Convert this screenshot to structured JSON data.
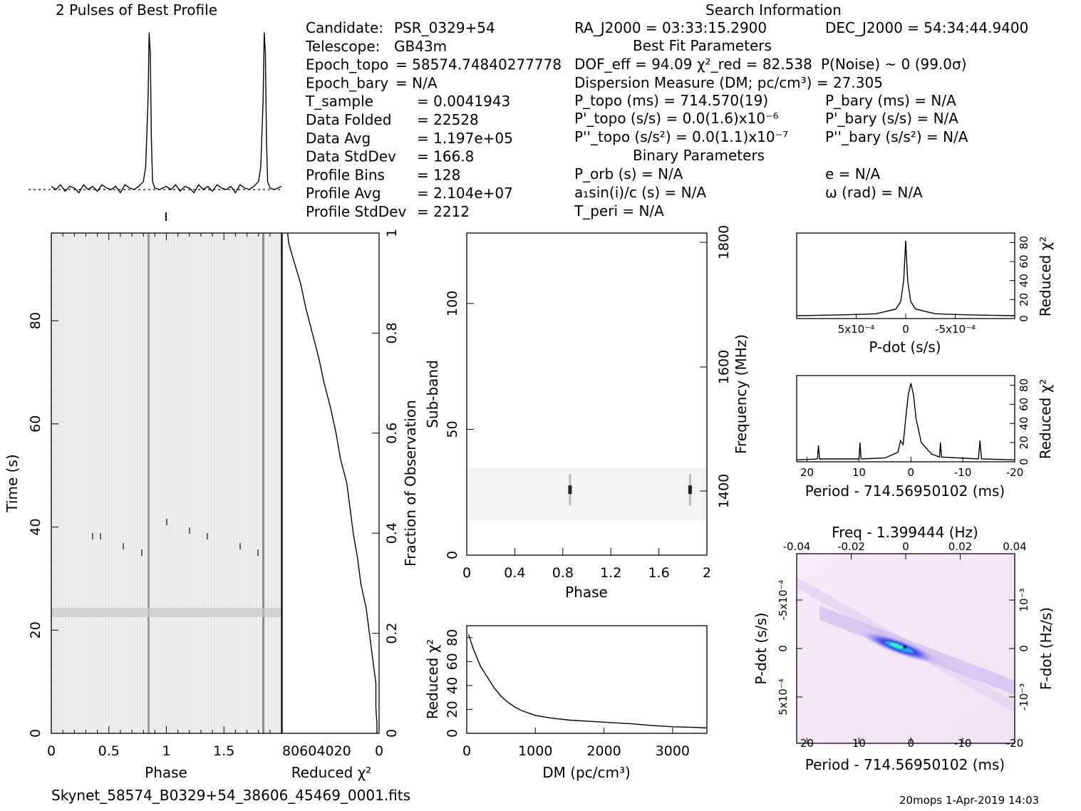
{
  "header": {
    "profile_title": "2 Pulses of Best Profile",
    "search_title": "Search Information",
    "best_fit_title": "Best Fit Parameters",
    "binary_title": "Binary Parameters"
  },
  "info_left": [
    {
      "key": "Candidate:",
      "value": "PSR_0329+54"
    },
    {
      "key": "Telescope:",
      "value": "GB43m"
    },
    {
      "key": "Epoch_topo",
      "value": "= 58574.74840277778"
    },
    {
      "key": "Epoch_bary",
      "value": "= N/A"
    },
    {
      "key": "T_sample",
      "value": "= 0.0041943"
    },
    {
      "key": "Data Folded",
      "value": "= 22528"
    },
    {
      "key": "Data Avg",
      "value": "= 1.197e+05"
    },
    {
      "key": "Data StdDev",
      "value": "= 166.8"
    },
    {
      "key": "Profile Bins",
      "value": "= 128"
    },
    {
      "key": "Profile Avg",
      "value": "= 2.104e+07"
    },
    {
      "key": "Profile StdDev",
      "value": "= 2212"
    }
  ],
  "info_mid": {
    "ra": "RA_J2000 = 03:33:15.2900",
    "dec": "DEC_J2000 = 54:34:44.9400",
    "dof": "DOF_eff = 94.09",
    "chi2": "χ²_red = 82.538",
    "pnoise": "P(Noise) ~ 0   (99.0σ)",
    "dm": "Dispersion Measure (DM; pc/cm³) = 27.305",
    "ptopo": "P_topo (ms) = 714.570(19)",
    "pbary": "P_bary (ms) = N/A",
    "pdtopo": "P'_topo (s/s) = 0.0(1.6)x10⁻⁶",
    "pdbary": "P'_bary (s/s) = N/A",
    "pddtopo": "P''_topo (s/s²) = 0.0(1.1)x10⁻⁷",
    "pddbary": "P''_bary (s/s²) = N/A",
    "porb": "P_orb (s) = N/A",
    "ecc": "e = N/A",
    "a1": "a₁sin(i)/c (s) = N/A",
    "omega": "ω (rad) = N/A",
    "tperi": "T_peri = N/A"
  },
  "footer": {
    "filename": "Skynet_58574_B0329+54_38606_45469_0001.fits",
    "stamp": "20mops   1-Apr-2019 14:03"
  },
  "colors": {
    "pulse": "#444444",
    "accent_blue": "#3030e0",
    "accent_cyan": "#20e0e0",
    "bg_pink": "#f6e6f6"
  },
  "chart_data": [
    {
      "type": "line",
      "name": "profile",
      "x_phase": [
        0,
        0.04,
        0.08,
        0.12,
        0.16,
        0.2,
        0.24,
        0.28,
        0.32,
        0.36,
        0.4,
        0.44,
        0.48,
        0.52,
        0.56,
        0.6,
        0.64,
        0.68,
        0.72,
        0.76,
        0.8,
        0.82,
        0.84,
        0.85,
        0.86,
        0.87,
        0.88,
        0.9,
        0.94,
        1.0,
        1.04,
        1.08,
        1.12,
        1.16,
        1.2,
        1.24,
        1.28,
        1.32,
        1.36,
        1.4,
        1.44,
        1.48,
        1.52,
        1.56,
        1.6,
        1.64,
        1.68,
        1.72,
        1.76,
        1.8,
        1.82,
        1.84,
        1.85,
        1.86,
        1.87,
        1.88,
        1.9,
        1.94,
        2.0
      ],
      "y_rel": [
        0.02,
        0.0,
        0.03,
        -0.01,
        0.02,
        0.01,
        -0.02,
        0.03,
        0.0,
        0.02,
        -0.01,
        0.03,
        0.01,
        0.0,
        0.02,
        -0.02,
        0.03,
        0.01,
        0.0,
        0.02,
        0.05,
        0.14,
        0.55,
        0.98,
        0.85,
        0.3,
        0.05,
        0.01,
        0.0,
        0.02,
        0.0,
        0.03,
        -0.01,
        0.02,
        0.01,
        -0.02,
        0.03,
        0.0,
        0.02,
        -0.01,
        0.03,
        0.01,
        0.0,
        0.02,
        -0.02,
        0.03,
        0.01,
        0.0,
        0.02,
        0.05,
        0.14,
        0.55,
        0.98,
        0.85,
        0.3,
        0.05,
        0.01,
        0.0,
        0.02
      ]
    },
    {
      "type": "heatmap",
      "name": "time-phase",
      "xlabel": "Phase",
      "ylabel": "Time (s)",
      "xticks": [
        "0",
        "0.5",
        "1",
        "1.5"
      ],
      "yticks": [
        "0",
        "20",
        "40",
        "60",
        "80"
      ],
      "xlim": [
        0,
        2
      ],
      "ylim": [
        0,
        97
      ],
      "pulse_phase": [
        0.86,
        1.86
      ]
    },
    {
      "type": "line",
      "name": "reduced-chi2-vs-fraction",
      "xlabel": "Reduced χ²",
      "ylabel": "Fraction of Observation",
      "xticks": [
        "80604020",
        "0"
      ],
      "yticks": [
        "0",
        "0.2",
        "0.4",
        "0.6",
        "0.8",
        "1"
      ],
      "xlim": [
        90,
        0
      ],
      "ylim": [
        0,
        1
      ],
      "fraction": [
        0,
        0.02,
        0.05,
        0.1,
        0.15,
        0.2,
        0.25,
        0.3,
        0.35,
        0.4,
        0.45,
        0.5,
        0.55,
        0.6,
        0.65,
        0.7,
        0.75,
        0.8,
        0.85,
        0.9,
        0.95,
        0.98,
        1.0
      ],
      "chi2": [
        2,
        2,
        3,
        3,
        6,
        9,
        12,
        17,
        20,
        24,
        27,
        30,
        36,
        40,
        45,
        51,
        56,
        62,
        68,
        73,
        80,
        84,
        85
      ]
    },
    {
      "type": "heatmap",
      "name": "subband-phase",
      "xlabel": "Phase",
      "ylabel": "Sub-band",
      "y2label": "Frequency (MHz)",
      "xticks": [
        "0",
        "0.4",
        "0.8",
        "1.2",
        "1.6",
        "2"
      ],
      "yticks": [
        "0",
        "50",
        "100"
      ],
      "y2ticks": [
        "1400",
        "1600",
        "1800"
      ],
      "xlim": [
        0,
        2
      ],
      "ylim": [
        0,
        128
      ],
      "band": [
        14,
        35
      ],
      "pulse_subband": 26
    },
    {
      "type": "line",
      "name": "dm-curve",
      "xlabel": "DM (pc/cm³)",
      "ylabel": "Reduced χ²",
      "xticks": [
        "0",
        "1000",
        "2000",
        "3000"
      ],
      "yticks": [
        "0",
        "20",
        "40",
        "60",
        "80"
      ],
      "xlim": [
        0,
        3500
      ],
      "ylim": [
        0,
        90
      ],
      "x": [
        27,
        100,
        200,
        300,
        400,
        500,
        600,
        700,
        800,
        1000,
        1200,
        1500,
        1800,
        2100,
        2400,
        2700,
        3000,
        3300,
        3500
      ],
      "y": [
        82.5,
        70,
        56,
        47,
        38,
        31,
        26,
        22,
        19,
        15,
        13,
        11,
        10,
        9,
        8,
        6.5,
        5.5,
        5,
        4.5
      ]
    },
    {
      "type": "line",
      "name": "pdot-curve",
      "xlabel": "P-dot (s/s)",
      "ylabel": "Reduced χ²",
      "xticks": [
        "5x10⁻⁴",
        "0",
        "-5x10⁻⁴"
      ],
      "yticks": [
        "0",
        "20",
        "40",
        "60",
        "80"
      ],
      "xlim": [
        0.0011,
        -0.0011
      ],
      "ylim": [
        0,
        90
      ],
      "x": [
        0.0011,
        0.0006,
        0.0003,
        0.0001,
        5e-05,
        2e-05,
        0,
        -2e-05,
        -5e-05,
        -0.0001,
        -0.0003,
        -0.0006,
        -0.0011
      ],
      "y": [
        3,
        4,
        5,
        10,
        18,
        40,
        82,
        40,
        18,
        10,
        5,
        4,
        3
      ]
    },
    {
      "type": "line",
      "name": "period-curve",
      "xlabel": "Period - 714.56950102 (ms)",
      "ylabel": "Reduced χ²",
      "xticks": [
        "20",
        "10",
        "0",
        "-10",
        "-20"
      ],
      "yticks": [
        "0",
        "20",
        "40",
        "60",
        "80"
      ],
      "xlim": [
        22,
        -20
      ],
      "ylim": [
        0,
        90
      ],
      "x": [
        22,
        18,
        17.8,
        17.6,
        12,
        10,
        9.8,
        9.6,
        5,
        2.5,
        2,
        1.5,
        1,
        0.5,
        0,
        -0.5,
        -1,
        -2,
        -4,
        -5.5,
        -5.7,
        -5.9,
        -13,
        -13.3,
        -13.6,
        -20
      ],
      "y": [
        2,
        3,
        17,
        3,
        3,
        3,
        20,
        3,
        4,
        10,
        22,
        18,
        45,
        70,
        82,
        70,
        45,
        20,
        8,
        5,
        20,
        5,
        3,
        22,
        3,
        2
      ]
    },
    {
      "type": "heatmap",
      "name": "period-pdot",
      "xlabel": "Period - 714.56950102 (ms)",
      "ylabel": "P-dot (s/s)",
      "x2label": "Freq - 1.399444 (Hz)",
      "y2label": "F-dot (Hz/s)",
      "xticks": [
        "20",
        "10",
        "0",
        "-10",
        "-20"
      ],
      "yticks": [
        "-5x10⁻⁴",
        "0",
        "5x10⁻⁴"
      ],
      "x2ticks": [
        "-0.04",
        "-0.02",
        "0",
        "0.02",
        "0.04"
      ],
      "y2ticks": [
        "10⁻³",
        "0",
        "-10⁻³"
      ],
      "xlim": [
        22,
        -20
      ],
      "ylim": [
        0.0011,
        -0.0011
      ]
    }
  ]
}
